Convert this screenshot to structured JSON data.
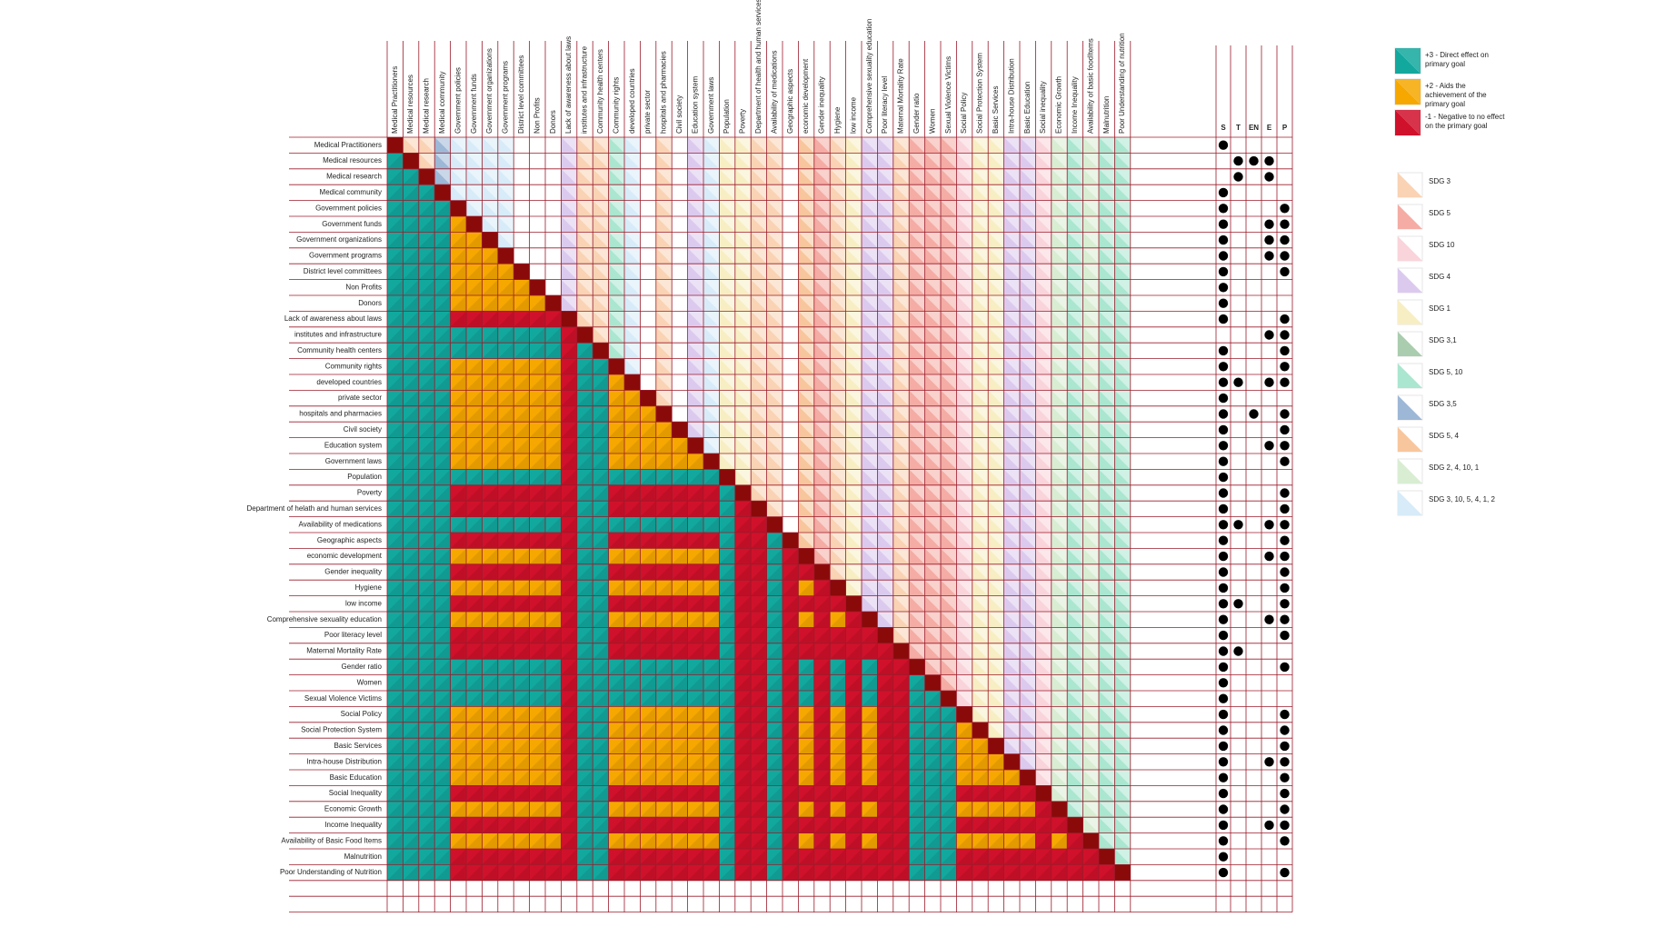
{
  "rows": [
    "Medical Practitioners",
    "Medical resources",
    "Medical research",
    "Medical community",
    "Government policies",
    "Government funds",
    "Government organizations",
    "Government programs",
    "District level committees",
    "Non Profits",
    "Donors",
    "Lack of awareness about laws",
    "institutes and infrastructure",
    "Community health centers",
    "Community rights",
    "developed countries",
    "private sector",
    "hospitals and pharmacies",
    "Civil society",
    "Education system",
    "Government laws",
    "Population",
    "Poverty",
    "Department of helath and human services",
    "Availability of medications",
    "Geographic aspects",
    "economic development",
    "Gender inequality",
    "Hygiene",
    "low income",
    "Comprehensive sexuality education",
    "Poor literacy level",
    "Maternal Mortality Rate",
    "Gender ratio",
    "Women",
    "Sexual Violence Victims",
    "Social Policy",
    "Social Protection System",
    "Basic Services",
    "Intra-house Distribution",
    "Basic Education",
    "Social Inequality",
    "Economic Growth",
    "Income Inequality",
    "Availability of Basic Food Items",
    "Malnutrition",
    "Poor Understanding of Nutrition"
  ],
  "columns": [
    "Medical Practitioners",
    "Medical resources",
    "Medical research",
    "Medical community",
    "Government policies",
    "Government funds",
    "Government organizations",
    "Government programs",
    "District level committees",
    "Non Profits",
    "Donors",
    "Lack of awareness about laws",
    "institutes and infrastructure",
    "Community health centers",
    "Community rights",
    "developed countries",
    "private sector",
    "hospitals and pharmacies",
    "Civil society",
    "Education system",
    "Government laws",
    "Population",
    "Poverty",
    "Department of health and human services",
    "Availability of medications",
    "Geographic aspects",
    "economic development",
    "Gender inequality",
    "Hygiene",
    "low income",
    "Comprehensive sexuality education",
    "Poor literacy level",
    "Maternal Mortality Rate",
    "Gender ratio",
    "Women",
    "Sexual Violence Victims",
    "Social Policy",
    "Social Protection System",
    "Basic Services",
    "Intra-house Distribution",
    "Basic Education",
    "Social inequality",
    "Economic Growth",
    "Income Inequality",
    "Availability of basic foodItems",
    "Malnutrition",
    "Poor Understanding of nutrition"
  ],
  "column_sdg": [
    "SDG 3",
    "SDG 3",
    "SDG 3",
    "SDG  3,5",
    "SDG 3, 10, 5, 4, 1, 2",
    "SDG 3, 10, 5, 4, 1, 2",
    "SDG 3, 10, 5, 4, 1, 2",
    "SDG 3, 10, 5, 4, 1, 2",
    null,
    null,
    null,
    "SDG 4",
    "SDG 3",
    "SDG 3",
    "SDG 5, 10",
    "SDG 3, 10, 5, 4, 1, 2",
    null,
    "SDG 3",
    null,
    "SDG 4",
    "SDG 3, 10, 5, 4, 1, 2",
    "SDG 1",
    "SDG 1",
    "SDG 3",
    "SDG 3",
    null,
    "SDG 5, 4",
    "SDG 5",
    "SDG 3",
    "SDG 1",
    "SDG 4",
    "SDG 4",
    "SDG 3",
    "SDG 5",
    "SDG 5",
    "SDG 5",
    "SDG 10",
    "SDG 1",
    "SDG 1",
    "SDG 4",
    "SDG 4",
    "SDG 10",
    "SDG 2, 4, 10, 1",
    "SDG 5, 10",
    "SDG 2, 4, 10, 1",
    "SDG 5, 10",
    "SDG 5, 10"
  ],
  "lower": [
    "a",
    "aa",
    "aaa",
    "aaaa",
    "aaaab",
    "aaaabb",
    "aaaabbb",
    "aaaabbbb",
    "aaaabbbbb",
    "aaaabbbbbb",
    "aaaaccccccc",
    "aaaaaaaaaaac",
    "aaaaaaaaaaaca",
    "aaaabbbbbbbcaa",
    "aaaabbbbbbbcaab",
    "aaaabbbbbbbcaabb",
    "aaaabbbbbbbcaabbb",
    "aaaabbbbbbbcaabbbb",
    "aaaabbbbbbbcaabbbbb",
    "aaaabbbbbbbcaabbbbbb",
    "aaaaaaaaaaacaaaaaaaaa",
    "aaaaccccccccaaccccccca",
    "aaaaccccccccaacccccccac",
    "aaaaaaaaaaacaaaaaaaaaacc",
    "aaaaccccccccaacccccccacca",
    "aaaabbbbbbbcaabbbbbbbaccac",
    "aaaaccccccccaacccccccaccacc",
    "aaaabbbbbbbcaabbbbbbbaccacbc",
    "aaaaccccccccaacccccccaccacccc",
    "aaaabbbbbbbcaabbbbbbbaccacbcbc",
    "aaaaccccccccaacccccccaccacccccc",
    "aaaaccccccccaacccccccaccaccccccc",
    "aaaaaaaaaaacaaaaaaaaaaccacacacacc",
    "aaaaaaaaaaacaaaaaaaaaaccacacacacca",
    "aaaaaaaaaaacaaaaaaaaaaccacacacaccaa",
    "aaaabbbbbbbcaabbbbbbbaccacbcbcbccaaa",
    "aaaabbbbbbbcaabbbbbbbaccacbcbcbccaaab",
    "aaaabbbbbbbcaabbbbbbbaccacbcbcbccaaabb",
    "aaaabbbbbbbcaabbbbbbbaccacbcbcbccaaabbb",
    "aaaabbbbbbbcaabbbbbbbaccacbcbcbccaaabbbb",
    "aaaaccccccccaacccccccaccaccccccccaaaccccc",
    "aaaabbbbbbbcaabbbbbbbaccacbcbcbccaaabbbbbc",
    "aaaaccccccccaacccccccaccaccccccccaaaccccccc",
    "aaaabbbbbbbcaabbbbbbbaccacbcbcbccaaabbbbbcbc",
    "aaaaccccccccaacccccccaccaccccccccaaaccccccccc",
    "aaaaccccccccaacccccccaccaccccccccaaacccccccccc"
  ],
  "effect_legend": [
    {
      "code": "a",
      "label": "+3 - Direct effect on primary goal",
      "color": "#13a89e"
    },
    {
      "code": "b",
      "label": "+2 - Aids the achievement of the primary goal",
      "color": "#f6a800"
    },
    {
      "code": "c",
      "label": "-1 - Negative to no effect on the primary goal",
      "color": "#d0112b"
    }
  ],
  "sdg_legend": [
    {
      "label": "SDG 3",
      "color": "#f9d3b4"
    },
    {
      "label": "SDG 5",
      "color": "#f4aca4"
    },
    {
      "label": "SDG 10",
      "color": "#f9d4da"
    },
    {
      "label": "SDG 4",
      "color": "#dccaee"
    },
    {
      "label": "SDG 1",
      "color": "#f8eec4"
    },
    {
      "label": "SDG  3,1",
      "color": "#a9cdae"
    },
    {
      "label": "SDG 5, 10",
      "color": "#aae6d0"
    },
    {
      "label": "SDG  3,5",
      "color": "#9db7d6"
    },
    {
      "label": "SDG 5, 4",
      "color": "#f8c69c"
    },
    {
      "label": "SDG 2, 4, 10, 1",
      "color": "#d9edd3"
    },
    {
      "label": "SDG 3, 10, 5, 4, 1, 2",
      "color": "#d7ebf8"
    }
  ],
  "steep_headers": [
    "S",
    "T",
    "EN",
    "E",
    "P"
  ],
  "steep": [
    [
      0
    ],
    [
      1,
      2,
      3
    ],
    [
      1,
      3
    ],
    [
      0
    ],
    [
      0,
      4
    ],
    [
      0,
      3,
      4
    ],
    [
      0,
      3,
      4
    ],
    [
      0,
      3,
      4
    ],
    [
      0,
      4
    ],
    [
      0
    ],
    [
      0
    ],
    [
      0,
      4
    ],
    [
      3,
      4
    ],
    [
      0,
      4
    ],
    [
      0,
      4
    ],
    [
      0,
      1,
      3,
      4
    ],
    [
      0
    ],
    [
      0,
      2,
      4
    ],
    [
      0,
      4
    ],
    [
      0,
      3,
      4
    ],
    [
      0,
      4
    ],
    [
      0
    ],
    [
      0,
      4
    ],
    [
      0,
      4
    ],
    [
      0,
      1,
      3,
      4
    ],
    [
      0,
      4
    ],
    [
      0,
      3,
      4
    ],
    [
      0,
      4
    ],
    [
      0,
      4
    ],
    [
      0,
      1,
      4
    ],
    [
      0,
      3,
      4
    ],
    [
      0,
      4
    ],
    [
      0,
      1
    ],
    [
      0,
      4
    ],
    [
      0
    ],
    [
      0
    ],
    [
      0,
      4
    ],
    [
      0,
      4
    ],
    [
      0,
      4
    ],
    [
      0,
      3,
      4
    ],
    [
      0,
      4
    ],
    [
      0,
      4
    ],
    [
      0,
      4
    ],
    [
      0,
      3,
      4
    ],
    [
      0,
      4
    ],
    [
      0
    ],
    [
      0,
      4
    ]
  ]
}
